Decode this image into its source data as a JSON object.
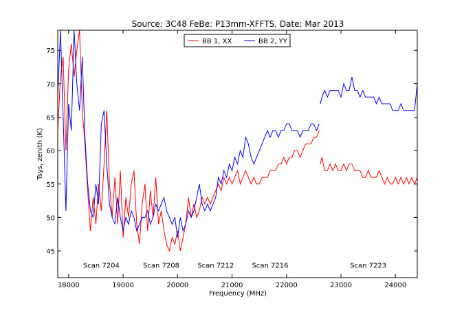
{
  "chart_data": {
    "type": "line",
    "title": "Source: 3C48 FeBe: P13mm-XFFTS, Date: Mar 2013",
    "xlabel": "Frequency (MHz)",
    "ylabel": "Tsys, zenith (K)",
    "xlim": [
      17800,
      24400
    ],
    "ylim": [
      41,
      78
    ],
    "grid": false,
    "legend_position": "top-center",
    "x_ticks": [
      18000,
      19000,
      20000,
      21000,
      22000,
      23000,
      24000
    ],
    "y_ticks": [
      45,
      50,
      55,
      60,
      65,
      70,
      75
    ],
    "annotations": [
      {
        "text": "Scan 7204",
        "x": 18600,
        "y": 42.8
      },
      {
        "text": "Scan 7208",
        "x": 19700,
        "y": 42.8
      },
      {
        "text": "Scan 7212",
        "x": 20700,
        "y": 42.8
      },
      {
        "text": "Scan 7216",
        "x": 21700,
        "y": 42.8
      },
      {
        "text": "Scan 7223",
        "x": 23500,
        "y": 42.8
      }
    ],
    "series": [
      {
        "name": "BB 1, XX",
        "color": "#ff0000",
        "segments": [
          [
            [
              17800,
              63
            ],
            [
              17850,
              71
            ],
            [
              17900,
              74
            ],
            [
              17950,
              60
            ],
            [
              18000,
              72
            ],
            [
              18050,
              76
            ],
            [
              18100,
              71
            ],
            [
              18150,
              75
            ],
            [
              18200,
              78
            ],
            [
              18250,
              66
            ],
            [
              18300,
              61
            ],
            [
              18350,
              54
            ],
            [
              18400,
              48
            ],
            [
              18450,
              53
            ],
            [
              18500,
              49
            ],
            [
              18550,
              55
            ],
            [
              18600,
              51
            ],
            [
              18650,
              58
            ],
            [
              18700,
              66
            ],
            [
              18750,
              55
            ],
            [
              18800,
              50
            ],
            [
              18850,
              56
            ],
            [
              18900,
              49
            ],
            [
              18950,
              57
            ],
            [
              19000,
              47
            ],
            [
              19050,
              53
            ],
            [
              19100,
              50
            ],
            [
              19150,
              55
            ],
            [
              19200,
              57
            ],
            [
              19250,
              49
            ],
            [
              19300,
              46
            ],
            [
              19350,
              52
            ],
            [
              19400,
              55
            ],
            [
              19450,
              48
            ],
            [
              19500,
              54
            ],
            [
              19550,
              50
            ],
            [
              19600,
              56
            ],
            [
              19650,
              49
            ],
            [
              19700,
              51
            ],
            [
              19750,
              48
            ],
            [
              19800,
              46
            ],
            [
              19850,
              45
            ],
            [
              19900,
              47
            ],
            [
              19950,
              46
            ],
            [
              20000,
              48
            ],
            [
              20050,
              45
            ],
            [
              20100,
              47
            ],
            [
              20150,
              49
            ],
            [
              20200,
              53
            ],
            [
              20250,
              50
            ],
            [
              20300,
              52
            ],
            [
              20350,
              50
            ],
            [
              20400,
              51
            ],
            [
              20450,
              53
            ],
            [
              20500,
              52
            ],
            [
              20550,
              53
            ],
            [
              20600,
              52
            ],
            [
              20650,
              53
            ],
            [
              20700,
              54
            ],
            [
              20750,
              55
            ],
            [
              20800,
              54
            ],
            [
              20850,
              56
            ],
            [
              20900,
              55
            ],
            [
              20950,
              56
            ],
            [
              21000,
              55
            ],
            [
              21050,
              56
            ],
            [
              21100,
              57
            ],
            [
              21150,
              55
            ],
            [
              21200,
              56
            ],
            [
              21250,
              57
            ],
            [
              21300,
              56
            ],
            [
              21350,
              55
            ],
            [
              21400,
              56
            ],
            [
              21450,
              55
            ],
            [
              21500,
              55
            ],
            [
              21550,
              56
            ],
            [
              21600,
              56
            ],
            [
              21650,
              56
            ],
            [
              21700,
              57
            ],
            [
              21750,
              57
            ],
            [
              21800,
              57
            ],
            [
              21850,
              58
            ],
            [
              21900,
              58
            ],
            [
              21950,
              59
            ],
            [
              22000,
              58
            ],
            [
              22050,
              59
            ],
            [
              22100,
              59
            ],
            [
              22150,
              60
            ],
            [
              22200,
              60
            ],
            [
              22250,
              59
            ],
            [
              22300,
              60
            ],
            [
              22350,
              61
            ],
            [
              22400,
              61
            ],
            [
              22450,
              61
            ],
            [
              22500,
              62
            ],
            [
              22550,
              62
            ],
            [
              22600,
              63
            ]
          ],
          [
            [
              22620,
              58
            ],
            [
              22650,
              59
            ],
            [
              22700,
              57
            ],
            [
              22750,
              57
            ],
            [
              22800,
              58
            ],
            [
              22850,
              57
            ],
            [
              22900,
              58
            ],
            [
              22950,
              57
            ],
            [
              23000,
              57
            ],
            [
              23050,
              58
            ],
            [
              23100,
              57
            ],
            [
              23150,
              58
            ],
            [
              23200,
              58
            ],
            [
              23250,
              57
            ],
            [
              23300,
              57
            ],
            [
              23350,
              57
            ],
            [
              23400,
              56
            ],
            [
              23450,
              56
            ],
            [
              23500,
              57
            ],
            [
              23550,
              56
            ],
            [
              23600,
              56
            ],
            [
              23650,
              56
            ],
            [
              23700,
              57
            ],
            [
              23750,
              56
            ],
            [
              23800,
              55
            ],
            [
              23850,
              56
            ],
            [
              23900,
              55
            ],
            [
              23950,
              55
            ],
            [
              24000,
              56
            ],
            [
              24050,
              55
            ],
            [
              24100,
              56
            ],
            [
              24150,
              55
            ],
            [
              24200,
              56
            ],
            [
              24250,
              55
            ],
            [
              24300,
              56
            ],
            [
              24350,
              55
            ],
            [
              24400,
              56
            ]
          ]
        ]
      },
      {
        "name": "BB 2, YY",
        "color": "#0000ff",
        "segments": [
          [
            [
              17800,
              68
            ],
            [
              17850,
              78
            ],
            [
              17900,
              65
            ],
            [
              17950,
              51
            ],
            [
              18000,
              67
            ],
            [
              18050,
              63
            ],
            [
              18100,
              78
            ],
            [
              18150,
              70
            ],
            [
              18200,
              66
            ],
            [
              18250,
              74
            ],
            [
              18300,
              62
            ],
            [
              18350,
              55
            ],
            [
              18400,
              51
            ],
            [
              18450,
              50
            ],
            [
              18500,
              55
            ],
            [
              18550,
              52
            ],
            [
              18600,
              64
            ],
            [
              18650,
              66
            ],
            [
              18700,
              58
            ],
            [
              18750,
              52
            ],
            [
              18800,
              50
            ],
            [
              18850,
              49
            ],
            [
              18900,
              53
            ],
            [
              18950,
              50
            ],
            [
              19000,
              48
            ],
            [
              19050,
              50
            ],
            [
              19100,
              49
            ],
            [
              19150,
              51
            ],
            [
              19200,
              50
            ],
            [
              19250,
              48
            ],
            [
              19300,
              49
            ],
            [
              19350,
              50
            ],
            [
              19400,
              50
            ],
            [
              19450,
              51
            ],
            [
              19500,
              49
            ],
            [
              19550,
              50
            ],
            [
              19600,
              52
            ],
            [
              19650,
              51
            ],
            [
              19700,
              52
            ],
            [
              19750,
              53
            ],
            [
              19800,
              51
            ],
            [
              19850,
              50
            ],
            [
              19900,
              49
            ],
            [
              19950,
              50
            ],
            [
              20000,
              47
            ],
            [
              20050,
              50
            ],
            [
              20100,
              48
            ],
            [
              20150,
              49
            ],
            [
              20200,
              51
            ],
            [
              20250,
              50
            ],
            [
              20300,
              51
            ],
            [
              20350,
              53
            ],
            [
              20400,
              55
            ],
            [
              20450,
              52
            ],
            [
              20500,
              51
            ],
            [
              20550,
              52
            ],
            [
              20600,
              51
            ],
            [
              20650,
              52
            ],
            [
              20700,
              53
            ],
            [
              20750,
              56
            ],
            [
              20800,
              55
            ],
            [
              20850,
              57
            ],
            [
              20900,
              56
            ],
            [
              20950,
              58
            ],
            [
              21000,
              57
            ],
            [
              21050,
              59
            ],
            [
              21100,
              58
            ],
            [
              21150,
              60
            ],
            [
              21200,
              59
            ],
            [
              21250,
              62
            ],
            [
              21300,
              61
            ],
            [
              21350,
              59
            ],
            [
              21400,
              58
            ],
            [
              21450,
              59
            ],
            [
              21500,
              60
            ],
            [
              21550,
              61
            ],
            [
              21600,
              62
            ],
            [
              21650,
              63
            ],
            [
              21700,
              62
            ],
            [
              21750,
              63
            ],
            [
              21800,
              63
            ],
            [
              21850,
              62
            ],
            [
              21900,
              63
            ],
            [
              21950,
              63
            ],
            [
              22000,
              64
            ],
            [
              22050,
              64
            ],
            [
              22100,
              63
            ],
            [
              22150,
              63
            ],
            [
              22200,
              63
            ],
            [
              22250,
              62
            ],
            [
              22300,
              63
            ],
            [
              22350,
              63
            ],
            [
              22400,
              63
            ],
            [
              22450,
              64
            ],
            [
              22500,
              64
            ],
            [
              22550,
              63
            ],
            [
              22600,
              64
            ]
          ],
          [
            [
              22620,
              67
            ],
            [
              22650,
              68
            ],
            [
              22700,
              69
            ],
            [
              22750,
              68
            ],
            [
              22800,
              69
            ],
            [
              22850,
              69
            ],
            [
              22900,
              69
            ],
            [
              22950,
              69
            ],
            [
              23000,
              68
            ],
            [
              23050,
              70
            ],
            [
              23100,
              69
            ],
            [
              23150,
              69
            ],
            [
              23200,
              71
            ],
            [
              23250,
              69
            ],
            [
              23300,
              69
            ],
            [
              23350,
              68
            ],
            [
              23400,
              69
            ],
            [
              23450,
              68
            ],
            [
              23500,
              68
            ],
            [
              23550,
              68
            ],
            [
              23600,
              68
            ],
            [
              23650,
              67
            ],
            [
              23700,
              68
            ],
            [
              23750,
              67
            ],
            [
              23800,
              67
            ],
            [
              23850,
              67
            ],
            [
              23900,
              67
            ],
            [
              23950,
              66
            ],
            [
              24000,
              66
            ],
            [
              24050,
              66
            ],
            [
              24100,
              67
            ],
            [
              24150,
              66
            ],
            [
              24200,
              66
            ],
            [
              24250,
              66
            ],
            [
              24300,
              66
            ],
            [
              24350,
              66
            ],
            [
              24400,
              70
            ]
          ]
        ]
      }
    ]
  }
}
